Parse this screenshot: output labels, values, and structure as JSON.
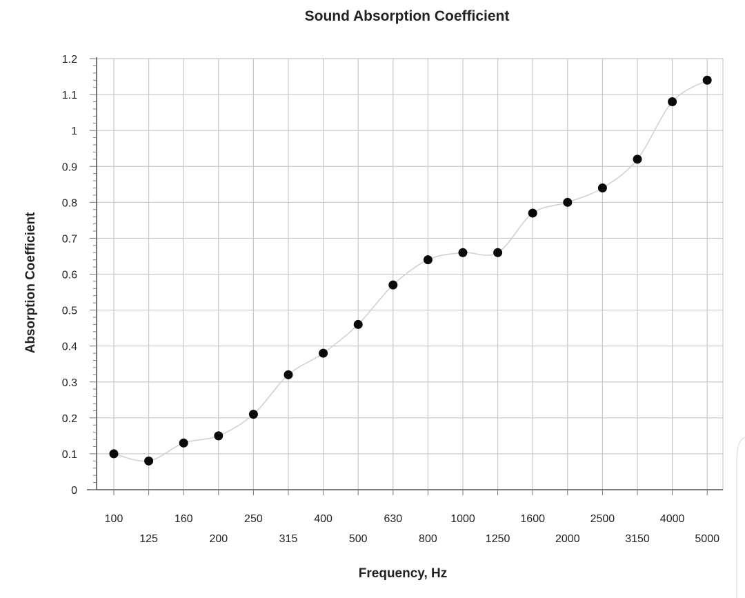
{
  "chart_data": {
    "type": "line",
    "title": "Sound Absorption Coefficient",
    "xlabel": "Frequency, Hz",
    "ylabel": "Absorption Coefficient",
    "categories": [
      "100",
      "125",
      "160",
      "200",
      "250",
      "315",
      "400",
      "500",
      "630",
      "800",
      "1000",
      "1250",
      "1600",
      "2000",
      "2500",
      "3150",
      "4000",
      "5000"
    ],
    "series": [
      {
        "values": [
          0.1,
          0.08,
          0.13,
          0.15,
          0.21,
          0.32,
          0.38,
          0.46,
          0.57,
          0.64,
          0.66,
          0.66,
          0.77,
          0.8,
          0.84,
          0.92,
          1.08,
          1.14
        ]
      }
    ],
    "ylim": [
      0,
      1.2
    ],
    "yticks": [
      "0",
      "0.1",
      "0.2",
      "0.3",
      "0.4",
      "0.5",
      "0.6",
      "0.7",
      "0.8",
      "0.9",
      "1",
      "1.1",
      "1.2"
    ],
    "grid": true,
    "legend": "none",
    "colors": {
      "points": "#0a0a0a",
      "line": "#d2d2d2",
      "grid": "#c8c8c8"
    }
  }
}
